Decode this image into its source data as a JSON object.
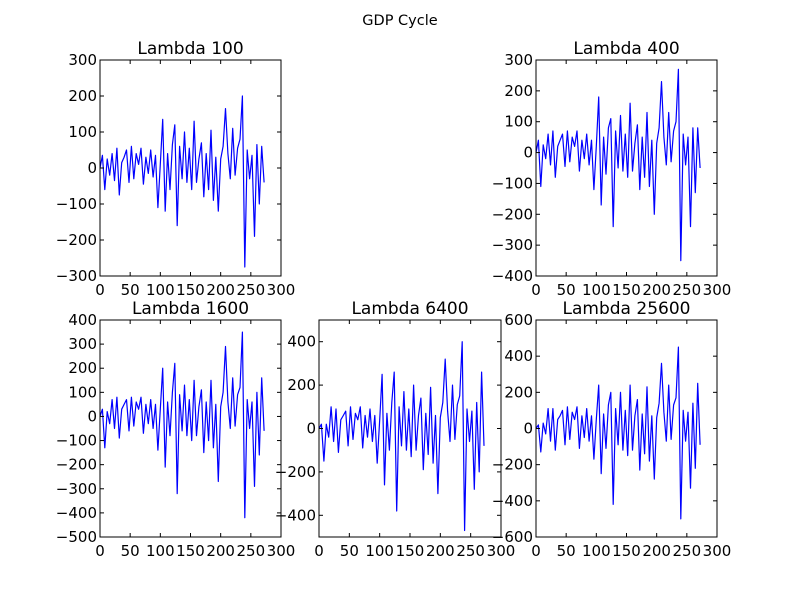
{
  "figure": {
    "title": "GDP Cycle",
    "line_color": "#0000ff"
  },
  "chart_data": [
    {
      "type": "line",
      "title": "Lambda 100",
      "xlim": [
        0,
        300
      ],
      "ylim": [
        -300,
        300
      ],
      "x_ticks": [
        0,
        50,
        100,
        150,
        200,
        250,
        300
      ],
      "x_tick_labels": [
        "0",
        "50",
        "100",
        "150",
        "200",
        "250",
        "300"
      ],
      "y_ticks": [
        300,
        200,
        100,
        0,
        -100,
        -200,
        -300
      ],
      "y_tick_labels": [
        "300",
        "200",
        "100",
        "0",
        "−100",
        "−200",
        "−300"
      ],
      "x": [
        0,
        4,
        8,
        12,
        16,
        20,
        24,
        28,
        32,
        36,
        40,
        44,
        48,
        52,
        56,
        60,
        64,
        68,
        72,
        76,
        80,
        84,
        88,
        92,
        96,
        100,
        104,
        108,
        112,
        116,
        120,
        124,
        128,
        132,
        136,
        140,
        144,
        148,
        152,
        156,
        160,
        164,
        168,
        172,
        176,
        180,
        184,
        188,
        192,
        196,
        200,
        204,
        208,
        212,
        216,
        220,
        224,
        228,
        232,
        236,
        240,
        244,
        248,
        252,
        256,
        260,
        264,
        268,
        272
      ],
      "y": [
        0,
        35,
        -60,
        25,
        -20,
        40,
        -35,
        55,
        -75,
        15,
        30,
        50,
        -40,
        60,
        -30,
        40,
        10,
        55,
        -45,
        30,
        -15,
        50,
        -25,
        35,
        -110,
        10,
        135,
        -120,
        40,
        -60,
        65,
        120,
        -160,
        60,
        -30,
        100,
        -40,
        55,
        -60,
        130,
        -40,
        25,
        70,
        -80,
        40,
        -60,
        105,
        -90,
        30,
        -120,
        25,
        60,
        165,
        40,
        -30,
        110,
        -20,
        55,
        80,
        200,
        -275,
        50,
        -30,
        35,
        -190,
        65,
        -100,
        60,
        -40
      ]
    },
    {
      "type": "line",
      "title": "Lambda 400",
      "xlim": [
        0,
        300
      ],
      "ylim": [
        -400,
        300
      ],
      "x_ticks": [
        0,
        50,
        100,
        150,
        200,
        250,
        300
      ],
      "x_tick_labels": [
        "0",
        "50",
        "100",
        "150",
        "200",
        "250",
        "300"
      ],
      "y_ticks": [
        300,
        200,
        100,
        0,
        -100,
        -200,
        -300,
        -400
      ],
      "y_tick_labels": [
        "300",
        "200",
        "100",
        "0",
        "−100",
        "−200",
        "−300",
        "−400"
      ],
      "x": [
        0,
        4,
        8,
        12,
        16,
        20,
        24,
        28,
        32,
        36,
        40,
        44,
        48,
        52,
        56,
        60,
        64,
        68,
        72,
        76,
        80,
        84,
        88,
        92,
        96,
        100,
        104,
        108,
        112,
        116,
        120,
        124,
        128,
        132,
        136,
        140,
        144,
        148,
        152,
        156,
        160,
        164,
        168,
        172,
        176,
        180,
        184,
        188,
        192,
        196,
        200,
        204,
        208,
        212,
        216,
        220,
        224,
        228,
        232,
        236,
        240,
        244,
        248,
        252,
        256,
        260,
        264,
        268,
        272
      ],
      "y": [
        0,
        40,
        -110,
        25,
        -20,
        60,
        -40,
        70,
        -80,
        20,
        40,
        60,
        -45,
        70,
        -30,
        50,
        20,
        70,
        -60,
        40,
        -20,
        60,
        -40,
        40,
        -120,
        20,
        180,
        -170,
        50,
        -70,
        80,
        110,
        -240,
        70,
        -50,
        120,
        -60,
        60,
        -80,
        160,
        -60,
        30,
        90,
        -120,
        50,
        -80,
        130,
        -110,
        40,
        -200,
        30,
        80,
        230,
        50,
        -40,
        130,
        -30,
        70,
        100,
        270,
        -350,
        60,
        -40,
        50,
        -240,
        80,
        -130,
        80,
        -50
      ]
    },
    {
      "type": "line",
      "title": "Lambda 1600",
      "xlim": [
        0,
        300
      ],
      "ylim": [
        -500,
        400
      ],
      "x_ticks": [
        0,
        50,
        100,
        150,
        200,
        250,
        300
      ],
      "x_tick_labels": [
        "0",
        "50",
        "100",
        "150",
        "200",
        "250",
        "300"
      ],
      "y_ticks": [
        400,
        300,
        200,
        100,
        0,
        -100,
        -200,
        -300,
        -400,
        -500
      ],
      "y_tick_labels": [
        "400",
        "300",
        "200",
        "100",
        "0",
        "−100",
        "−200",
        "−300",
        "−400",
        "−500"
      ],
      "x": [
        0,
        4,
        8,
        12,
        16,
        20,
        24,
        28,
        32,
        36,
        40,
        44,
        48,
        52,
        56,
        60,
        64,
        68,
        72,
        76,
        80,
        84,
        88,
        92,
        96,
        100,
        104,
        108,
        112,
        116,
        120,
        124,
        128,
        132,
        136,
        140,
        144,
        148,
        152,
        156,
        160,
        164,
        168,
        172,
        176,
        180,
        184,
        188,
        192,
        196,
        200,
        204,
        208,
        212,
        216,
        220,
        224,
        228,
        232,
        236,
        240,
        244,
        248,
        252,
        256,
        260,
        264,
        268,
        272
      ],
      "y": [
        0,
        30,
        -130,
        20,
        -30,
        70,
        -50,
        80,
        -90,
        30,
        50,
        70,
        -60,
        80,
        -40,
        60,
        30,
        80,
        -70,
        50,
        -30,
        70,
        -50,
        50,
        -140,
        30,
        200,
        -210,
        60,
        -80,
        100,
        220,
        -320,
        90,
        -60,
        130,
        -80,
        70,
        -100,
        150,
        -80,
        40,
        110,
        -150,
        60,
        -100,
        150,
        -130,
        50,
        -270,
        40,
        100,
        290,
        60,
        -50,
        160,
        -40,
        90,
        120,
        350,
        -420,
        70,
        -50,
        60,
        -290,
        100,
        -160,
        160,
        -60
      ]
    },
    {
      "type": "line",
      "title": "Lambda 6400",
      "xlim": [
        0,
        300
      ],
      "ylim": [
        -500,
        500
      ],
      "x_ticks": [
        0,
        50,
        100,
        150,
        200,
        250,
        300
      ],
      "x_tick_labels": [
        "0",
        "50",
        "100",
        "150",
        "200",
        "250",
        "300"
      ],
      "y_ticks": [
        400,
        200,
        0,
        -200,
        -400
      ],
      "y_tick_labels": [
        "400",
        "200",
        "0",
        "−200",
        "−400"
      ],
      "x": [
        0,
        4,
        8,
        12,
        16,
        20,
        24,
        28,
        32,
        36,
        40,
        44,
        48,
        52,
        56,
        60,
        64,
        68,
        72,
        76,
        80,
        84,
        88,
        92,
        96,
        100,
        104,
        108,
        112,
        116,
        120,
        124,
        128,
        132,
        136,
        140,
        144,
        148,
        152,
        156,
        160,
        164,
        168,
        172,
        176,
        180,
        184,
        188,
        192,
        196,
        200,
        204,
        208,
        212,
        216,
        220,
        224,
        228,
        232,
        236,
        240,
        244,
        248,
        252,
        256,
        260,
        264,
        268,
        272
      ],
      "y": [
        0,
        20,
        -150,
        20,
        -40,
        100,
        -60,
        90,
        -110,
        40,
        60,
        80,
        -80,
        100,
        -50,
        70,
        40,
        100,
        -90,
        60,
        -40,
        90,
        -60,
        60,
        -160,
        40,
        250,
        -260,
        70,
        -100,
        120,
        260,
        -380,
        100,
        -80,
        170,
        -100,
        90,
        -130,
        200,
        -100,
        60,
        140,
        -190,
        70,
        -120,
        190,
        -160,
        60,
        -300,
        50,
        120,
        320,
        80,
        -60,
        200,
        -50,
        110,
        150,
        400,
        -470,
        90,
        -60,
        80,
        -280,
        120,
        -200,
        260,
        -80
      ]
    },
    {
      "type": "line",
      "title": "Lambda 25600",
      "xlim": [
        0,
        300
      ],
      "ylim": [
        -600,
        600
      ],
      "x_ticks": [
        0,
        50,
        100,
        150,
        200,
        250,
        300
      ],
      "x_tick_labels": [
        "0",
        "50",
        "100",
        "150",
        "200",
        "250",
        "300"
      ],
      "y_ticks": [
        600,
        400,
        200,
        0,
        -200,
        -400,
        -600
      ],
      "y_tick_labels": [
        "600",
        "400",
        "200",
        "0",
        "−200",
        "−400",
        "−600"
      ],
      "x": [
        0,
        4,
        8,
        12,
        16,
        20,
        24,
        28,
        32,
        36,
        40,
        44,
        48,
        52,
        56,
        60,
        64,
        68,
        72,
        76,
        80,
        84,
        88,
        92,
        96,
        100,
        104,
        108,
        112,
        116,
        120,
        124,
        128,
        132,
        136,
        140,
        144,
        148,
        152,
        156,
        160,
        164,
        168,
        172,
        176,
        180,
        184,
        188,
        192,
        196,
        200,
        204,
        208,
        212,
        216,
        220,
        224,
        228,
        232,
        236,
        240,
        244,
        248,
        252,
        256,
        260,
        264,
        268,
        272
      ],
      "y": [
        0,
        20,
        -130,
        30,
        -30,
        110,
        -70,
        110,
        -120,
        50,
        70,
        100,
        -90,
        120,
        -60,
        90,
        50,
        120,
        -110,
        70,
        -50,
        110,
        -70,
        70,
        -170,
        50,
        240,
        -250,
        80,
        -110,
        130,
        200,
        -420,
        110,
        -90,
        200,
        -120,
        100,
        -150,
        240,
        -120,
        70,
        160,
        -230,
        80,
        -140,
        230,
        -180,
        70,
        -280,
        60,
        140,
        360,
        90,
        -70,
        240,
        -60,
        130,
        170,
        450,
        -500,
        100,
        -70,
        90,
        -330,
        140,
        -220,
        250,
        -90
      ]
    }
  ]
}
